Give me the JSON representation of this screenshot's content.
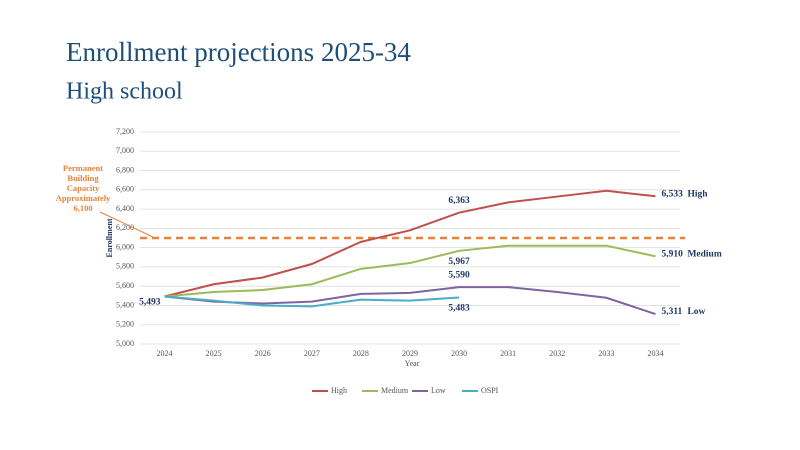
{
  "chart_data": {
    "type": "line",
    "title": "Enrollment projections 2025-34",
    "subtitle": "High school",
    "y_label": "Enrollment",
    "x_label": "Year",
    "categories": [
      "2024",
      "2025",
      "2026",
      "2027",
      "2028",
      "2029",
      "2030",
      "2031",
      "2032",
      "2033",
      "2034"
    ],
    "series": [
      {
        "name": "High",
        "color": "#c0504d",
        "values": [
          5493,
          5620,
          5690,
          5830,
          6060,
          6180,
          6363,
          6470,
          6530,
          6590,
          6533
        ],
        "value_labels": [
          "5,493",
          null,
          null,
          null,
          null,
          null,
          "6,363",
          null,
          null,
          null,
          "6,533"
        ]
      },
      {
        "name": "Medium",
        "color": "#9bbb59",
        "values": [
          5493,
          5540,
          5560,
          5620,
          5780,
          5840,
          5967,
          6020,
          6020,
          6020,
          5910
        ],
        "value_labels": [
          null,
          null,
          null,
          null,
          null,
          null,
          "5,967",
          null,
          null,
          null,
          "5,910"
        ]
      },
      {
        "name": "Low",
        "color": "#8064a2",
        "values": [
          5493,
          5440,
          5420,
          5440,
          5520,
          5530,
          5590,
          5590,
          5540,
          5480,
          5311
        ],
        "value_labels": [
          null,
          null,
          null,
          null,
          null,
          null,
          "5,590",
          null,
          null,
          null,
          "5,311"
        ]
      },
      {
        "name": "OSPI",
        "color": "#4bacc6",
        "values": [
          5493,
          5450,
          5400,
          5390,
          5460,
          5450,
          5483,
          null,
          null,
          null,
          null
        ],
        "value_labels": [
          null,
          null,
          null,
          null,
          null,
          null,
          "5,483",
          null,
          null,
          null,
          null
        ]
      }
    ],
    "capacity": {
      "lines": [
        "Permanent",
        "Building",
        "Capacity",
        "Approximately"
      ],
      "value": 6100,
      "label": "6,100",
      "color": "#e8823a"
    },
    "ylim": [
      5000,
      7200
    ],
    "yticks": [
      {
        "value": 5000,
        "label": "5,000"
      },
      {
        "value": 5200,
        "label": "5,200"
      },
      {
        "value": 5400,
        "label": "5,400"
      },
      {
        "value": 5600,
        "label": "5,600"
      },
      {
        "value": 5800,
        "label": "5,800"
      },
      {
        "value": 6000,
        "label": "6,000"
      },
      {
        "value": 6200,
        "label": "6,200"
      },
      {
        "value": 6400,
        "label": "6,400"
      },
      {
        "value": 6600,
        "label": "6,600"
      },
      {
        "value": 6800,
        "label": "6,800"
      },
      {
        "value": 7000,
        "label": "7,000"
      },
      {
        "value": 7200,
        "label": "7,200"
      }
    ],
    "grid": true,
    "legend": "bottom"
  }
}
